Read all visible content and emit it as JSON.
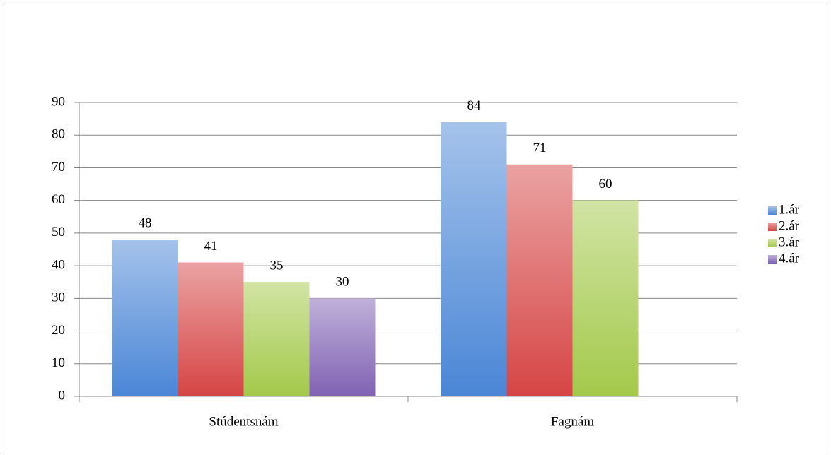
{
  "chart_data": {
    "type": "bar",
    "categories": [
      "Stúdentsnám",
      "Fagnám"
    ],
    "series": [
      {
        "name": "1.ár",
        "color": "#4a86d6",
        "values": [
          48,
          84
        ]
      },
      {
        "name": "2.ár",
        "color": "#d64545",
        "values": [
          41,
          71
        ]
      },
      {
        "name": "3.ár",
        "color": "#a3c94a",
        "values": [
          35,
          60
        ]
      },
      {
        "name": "4.ár",
        "color": "#8062b3",
        "values": [
          30,
          null
        ]
      }
    ],
    "ylim": [
      0,
      90
    ],
    "yticks": [
      0,
      10,
      20,
      30,
      40,
      50,
      60,
      70,
      80,
      90
    ],
    "grid": true,
    "legend": "right",
    "data_labels": true
  }
}
